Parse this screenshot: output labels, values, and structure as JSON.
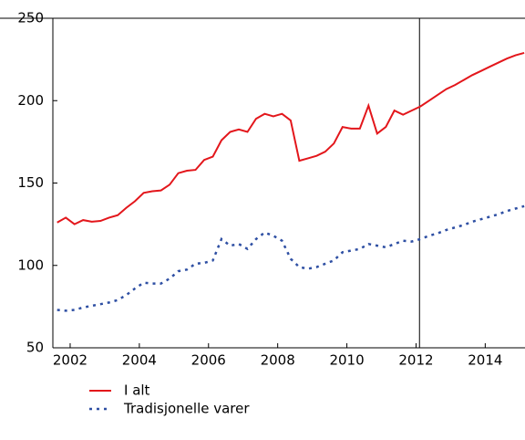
{
  "chart_data": {
    "type": "line",
    "x": [
      2001.625,
      2001.875,
      2002.125,
      2002.375,
      2002.625,
      2002.875,
      2003.125,
      2003.375,
      2003.625,
      2003.875,
      2004.125,
      2004.375,
      2004.625,
      2004.875,
      2005.125,
      2005.375,
      2005.625,
      2005.875,
      2006.125,
      2006.375,
      2006.625,
      2006.875,
      2007.125,
      2007.375,
      2007.625,
      2007.875,
      2008.125,
      2008.375,
      2008.625,
      2008.875,
      2009.125,
      2009.375,
      2009.625,
      2009.875,
      2010.125,
      2010.375,
      2010.625,
      2010.875,
      2011.125,
      2011.375,
      2011.625,
      2011.875,
      2012.125,
      2012.375,
      2012.625,
      2012.875,
      2013.125,
      2013.375,
      2013.625,
      2013.875,
      2014.125,
      2014.375,
      2014.625,
      2014.875,
      2015.125
    ],
    "series": [
      {
        "name": "I alt",
        "color": "#e3161b",
        "dash": false,
        "values": [
          126,
          129,
          125,
          127.5,
          126.5,
          127,
          129,
          130.5,
          135,
          139,
          144,
          145,
          145.5,
          149,
          156,
          157.5,
          158,
          164,
          166,
          176,
          181,
          182.5,
          181,
          189,
          192,
          190.5,
          192,
          188,
          163.5,
          165,
          166.5,
          169,
          174,
          184,
          183,
          183,
          197,
          180,
          184,
          194,
          191.5,
          194,
          196.5,
          200,
          203.5,
          207,
          209.5,
          212.5,
          215.5,
          218,
          220.5,
          223,
          225.5,
          227.5,
          229
        ]
      },
      {
        "name": "Tradisjonelle varer",
        "color": "#2e4fa3",
        "dash": true,
        "values": [
          73,
          72.5,
          73,
          74.5,
          75.5,
          76.5,
          77.5,
          79,
          82,
          86,
          89.5,
          89,
          89,
          92,
          96.5,
          97.5,
          101,
          101.5,
          103,
          116,
          112,
          113,
          110,
          116,
          120,
          118,
          115,
          104,
          99,
          98,
          99,
          101,
          103,
          108,
          109,
          110,
          113,
          112,
          111,
          113,
          115,
          114.5,
          116,
          118,
          119.5,
          121.5,
          123,
          124.5,
          126.5,
          128,
          129.5,
          131,
          133,
          134.5,
          136
        ]
      }
    ],
    "xlim": [
      2001.5,
      2015.15
    ],
    "xticks": [
      2002,
      2004,
      2006,
      2008,
      2010,
      2012,
      2014
    ],
    "ylim": [
      50,
      250
    ],
    "yticks": [
      50,
      100,
      150,
      200,
      250
    ],
    "vline": 2012.1,
    "grid": false
  }
}
